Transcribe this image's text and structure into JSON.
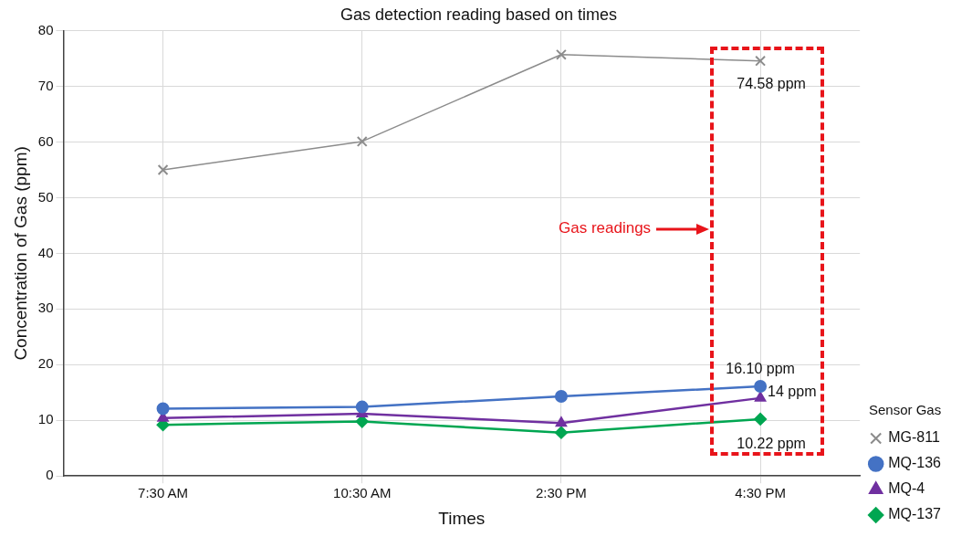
{
  "chart_data": {
    "type": "line",
    "title": "Gas detection reading based on times",
    "xlabel": "Times",
    "ylabel": "Concentration of Gas (ppm)",
    "legend_title": "Sensor Gas",
    "legend": "right",
    "grid": true,
    "categories": [
      "7:30 AM",
      "10:30 AM",
      "2:30 PM",
      "4:30 PM"
    ],
    "ylim": [
      0,
      80
    ],
    "yticks": [
      0,
      10,
      20,
      30,
      40,
      50,
      60,
      70,
      80
    ],
    "series": [
      {
        "name": "MG-811",
        "color": "#8c8c8c",
        "marker": "cross",
        "values": [
          55.0,
          60.1,
          75.7,
          74.58
        ],
        "value_labels": [
          null,
          null,
          null,
          "74.58 ppm"
        ]
      },
      {
        "name": "MQ-136",
        "color": "#4472c4",
        "marker": "circle",
        "values": [
          12.1,
          12.4,
          14.3,
          16.1
        ],
        "value_labels": [
          null,
          null,
          null,
          "16.10 ppm"
        ]
      },
      {
        "name": "MQ-4",
        "color": "#7030a0",
        "marker": "triangle",
        "values": [
          10.4,
          11.2,
          9.5,
          14
        ],
        "value_labels": [
          null,
          null,
          null,
          "14 ppm"
        ]
      },
      {
        "name": "MQ-137",
        "color": "#00a651",
        "marker": "diamond",
        "values": [
          9.2,
          9.8,
          7.8,
          10.22
        ],
        "value_labels": [
          null,
          null,
          null,
          "10.22 ppm"
        ]
      }
    ],
    "annotations": [
      "Gas readings"
    ]
  }
}
